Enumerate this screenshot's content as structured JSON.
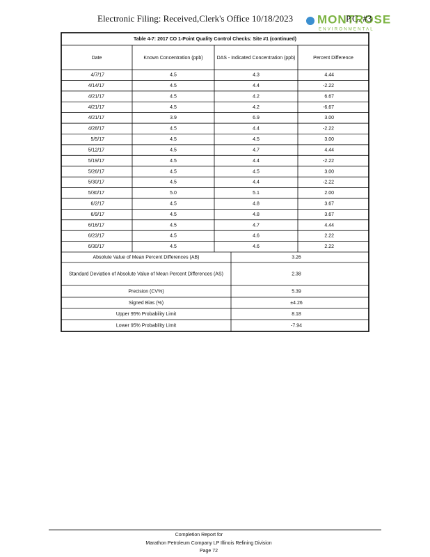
{
  "header": {
    "filing": "Electronic Filing: Received,Clerk's Office 10/18/2023",
    "pc": "P.C. #3",
    "logo": {
      "name": "MONTROSE",
      "tagline": "ENVIRONMENTAL"
    }
  },
  "table": {
    "title": "Table 4-7: 2017 CO 1-Point Quality Control Checks: Site #1 (continued)",
    "columns": [
      "Date",
      "Known Concentration (ppb)",
      "DAS - Indicated Concentration (ppb)",
      "Percent Difference"
    ],
    "rows": [
      [
        "4/7/17",
        "4.5",
        "4.3",
        "4.44"
      ],
      [
        "4/14/17",
        "4.5",
        "4.4",
        "-2.22"
      ],
      [
        "4/21/17",
        "4.5",
        "4.2",
        "6.67"
      ],
      [
        "4/21/17",
        "4.5",
        "4.2",
        "-6.67"
      ],
      [
        "4/21/17",
        "3.9",
        "6.9",
        "3.00"
      ],
      [
        "4/28/17",
        "4.5",
        "4.4",
        "-2.22"
      ],
      [
        "5/5/17",
        "4.5",
        "4.5",
        "3.00"
      ],
      [
        "5/12/17",
        "4.5",
        "4.7",
        "4.44"
      ],
      [
        "5/19/17",
        "4.5",
        "4.4",
        "-2.22"
      ],
      [
        "5/26/17",
        "4.5",
        "4.5",
        "3.00"
      ],
      [
        "5/30/17",
        "4.5",
        "4.4",
        "-2.22"
      ],
      [
        "5/30/17",
        "5.0",
        "5.1",
        "2.00"
      ],
      [
        "6/2/17",
        "4.5",
        "4.8",
        "3.67"
      ],
      [
        "6/9/17",
        "4.5",
        "4.8",
        "3.67"
      ],
      [
        "6/16/17",
        "4.5",
        "4.7",
        "4.44"
      ],
      [
        "6/23/17",
        "4.5",
        "4.6",
        "2.22"
      ],
      [
        "6/30/17",
        "4.5",
        "4.6",
        "2.22"
      ]
    ],
    "summary": [
      [
        "Absolute Value of Mean Percent Differences (AB)",
        "3.26"
      ],
      [
        "Standard Deviation of Absolute Value of Mean Percent Differences (AS)",
        "2.38"
      ],
      [
        "Precision (CV%)",
        "5.39"
      ],
      [
        "Signed Bias (%)",
        "±4.26"
      ],
      [
        "Upper 95% Probability Limit",
        "8.18"
      ],
      [
        "Lower 95% Probability Limit",
        "-7.94"
      ]
    ]
  },
  "footer": {
    "line1": "Completion Report for",
    "line2": "Marathon Petroleum Company LP Illinois Refining Division",
    "line3": "Page 72"
  }
}
